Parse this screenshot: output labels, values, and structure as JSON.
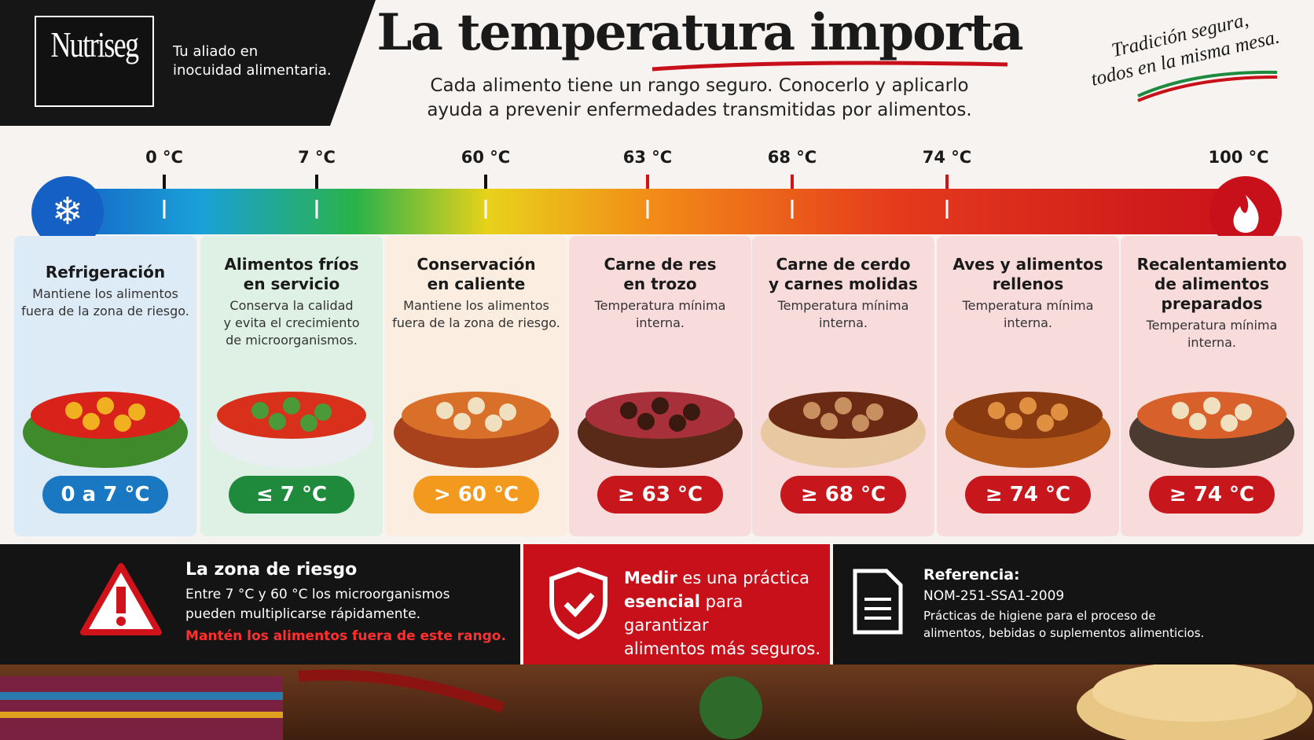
{
  "brand": {
    "name": "Nutriseg",
    "tagline": [
      "Tu aliado en",
      "inocuidad alimentaria."
    ]
  },
  "header": {
    "title": "La temperatura importa",
    "subtitle": [
      "Cada alimento tiene un rango seguro. Conocerlo y aplicarlo",
      "ayuda a prevenir enfermedades transmitidas por alimentos."
    ],
    "motto": [
      "Tradición segura,",
      "todos en la misma mesa."
    ]
  },
  "scale": {
    "ticks": [
      "0 °C",
      "7 °C",
      "60 °C",
      "63 °C",
      "68 °C",
      "74 °C",
      "100 °C"
    ]
  },
  "cards": [
    {
      "title": [
        "Refrigeración"
      ],
      "text": [
        "Mantiene los alimentos",
        "fuera de la zona de riesgo."
      ],
      "badge": "0 a 7 °C"
    },
    {
      "title": [
        "Alimentos fríos",
        "en servicio"
      ],
      "text": [
        "Conserva la calidad",
        "y evita el crecimiento",
        "de microorganismos."
      ],
      "badge": "≤ 7 °C"
    },
    {
      "title": [
        "Conservación",
        "en caliente"
      ],
      "text": [
        "Mantiene los alimentos",
        "fuera de la zona de riesgo."
      ],
      "badge": "> 60 °C"
    },
    {
      "title": [
        "Carne de res",
        "en trozo"
      ],
      "text": [
        "Temperatura mínima",
        "interna."
      ],
      "badge": "≥ 63 °C"
    },
    {
      "title": [
        "Carne de cerdo",
        "y carnes molidas"
      ],
      "text": [
        "Temperatura mínima",
        "interna."
      ],
      "badge": "≥ 68 °C"
    },
    {
      "title": [
        "Aves y alimentos",
        "rellenos"
      ],
      "text": [
        "Temperatura mínima",
        "interna."
      ],
      "badge": "≥ 74 °C"
    },
    {
      "title": [
        "Recalentamiento",
        "de alimentos",
        "preparados"
      ],
      "text": [
        "Temperatura mínima",
        "interna."
      ],
      "badge": "≥ 74 °C"
    }
  ],
  "risk": {
    "title": "La zona de riesgo",
    "lines": [
      "Entre 7 °C y 60 °C los microorganismos",
      "pueden multiplicarse rápidamente."
    ],
    "warning": "Mantén los alimentos fuera de este rango."
  },
  "measure": {
    "bold1": "Medir",
    "rest1": "es una práctica",
    "bold2": "esencial",
    "rest2": "para garantizar",
    "line3": "alimentos más seguros."
  },
  "reference": {
    "title": "Referencia:",
    "code": "NOM-251-SSA1-2009",
    "lines": [
      "Prácticas de higiene para el proceso de",
      "alimentos, bebidas o suplementos alimenticios."
    ]
  }
}
